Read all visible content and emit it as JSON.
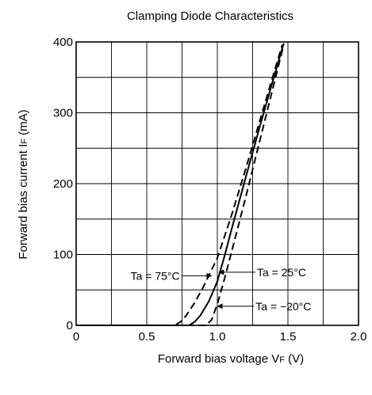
{
  "chart_data": {
    "type": "line",
    "title": "Clamping Diode Characteristics",
    "xlabel": "Forward bias voltage  V",
    "xlabel_sub": "F",
    "xlabel_unit": " (V)",
    "ylabel": "Forward bias current  I",
    "ylabel_sub": "F",
    "ylabel_unit": " (mA)",
    "xlim": [
      0,
      2.0
    ],
    "ylim": [
      0,
      400
    ],
    "x_ticks": [
      0,
      0.5,
      1.0,
      1.5,
      2.0
    ],
    "x_tick_labels": [
      "0",
      "0.5",
      "1.0",
      "1.5",
      "2.0"
    ],
    "y_ticks": [
      0,
      100,
      200,
      300,
      400
    ],
    "y_tick_labels": [
      "0",
      "100",
      "200",
      "300",
      "400"
    ],
    "grid": true,
    "series": [
      {
        "name": "Ta = 75°C",
        "dash": "dashed",
        "points": [
          [
            0.0,
            0
          ],
          [
            0.7,
            0
          ],
          [
            0.74,
            5
          ],
          [
            0.78,
            14
          ],
          [
            0.84,
            32
          ],
          [
            0.9,
            54
          ],
          [
            1.0,
            95
          ],
          [
            1.1,
            155
          ],
          [
            1.2,
            220
          ],
          [
            1.3,
            288
          ],
          [
            1.4,
            356
          ],
          [
            1.46,
            396
          ]
        ]
      },
      {
        "name": "Ta = 25°C",
        "dash": "solid",
        "points": [
          [
            0.0,
            0
          ],
          [
            0.8,
            0
          ],
          [
            0.84,
            5
          ],
          [
            0.88,
            14
          ],
          [
            0.94,
            34
          ],
          [
            1.0,
            62
          ],
          [
            1.05,
            97
          ],
          [
            1.1,
            135
          ],
          [
            1.2,
            208
          ],
          [
            1.3,
            280
          ],
          [
            1.4,
            350
          ],
          [
            1.47,
            398
          ]
        ]
      },
      {
        "name": "Ta = −20°C",
        "dash": "dashed",
        "points": [
          [
            0.0,
            0
          ],
          [
            0.92,
            0
          ],
          [
            0.96,
            8
          ],
          [
            1.0,
            30
          ],
          [
            1.05,
            65
          ],
          [
            1.1,
            103
          ],
          [
            1.2,
            180
          ],
          [
            1.3,
            260
          ],
          [
            1.4,
            340
          ],
          [
            1.47,
            396
          ]
        ]
      }
    ],
    "annotations": [
      {
        "text": "Ta = 75°C",
        "series": 0,
        "side": "left",
        "at": [
          0.97,
          70
        ]
      },
      {
        "text": "Ta = 25°C",
        "series": 1,
        "side": "right",
        "at": [
          1.0,
          75
        ]
      },
      {
        "text": "Ta = −20°C",
        "series": 2,
        "side": "right",
        "at": [
          0.99,
          27
        ]
      }
    ]
  }
}
